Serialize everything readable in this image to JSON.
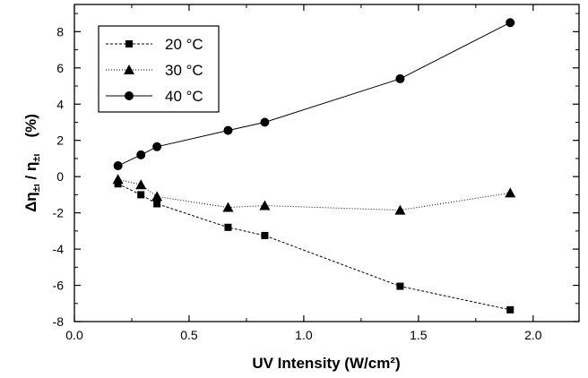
{
  "chart_data": {
    "type": "line",
    "xlabel": "UV Intensity (W/cm²)",
    "ylabel": "Δη±ι / η±ι (%)",
    "ylabel_parts": {
      "main": "Δη",
      "sub1": "±ι",
      "mid": " / η",
      "sub2": "±ι",
      "unit": "(%)"
    },
    "xlim": [
      0.0,
      2.2
    ],
    "ylim": [
      -8,
      9.5
    ],
    "xticks": [
      "0.0",
      "0.5",
      "1.0",
      "1.5",
      "2.0"
    ],
    "yticks": [
      "-8",
      "-6",
      "-4",
      "-2",
      "0",
      "2",
      "4",
      "6",
      "8"
    ],
    "grid": false,
    "legend_position": "top-left",
    "series": [
      {
        "name": "20 °C",
        "marker": "square",
        "line_style": "dashed",
        "x": [
          0.19,
          0.29,
          0.36,
          0.67,
          0.83,
          1.42,
          1.9
        ],
        "y": [
          -0.4,
          -1.0,
          -1.5,
          -2.8,
          -3.25,
          -6.05,
          -7.35
        ]
      },
      {
        "name": "30 °C",
        "marker": "triangle",
        "line_style": "dotted",
        "x": [
          0.19,
          0.29,
          0.36,
          0.67,
          0.83,
          1.42,
          1.9
        ],
        "y": [
          -0.15,
          -0.45,
          -1.1,
          -1.7,
          -1.6,
          -1.85,
          -0.9
        ]
      },
      {
        "name": "40 °C",
        "marker": "circle",
        "line_style": "solid",
        "x": [
          0.19,
          0.29,
          0.36,
          0.67,
          0.83,
          1.42,
          1.9
        ],
        "y": [
          0.6,
          1.2,
          1.65,
          2.55,
          3.0,
          5.4,
          8.5
        ]
      }
    ]
  }
}
